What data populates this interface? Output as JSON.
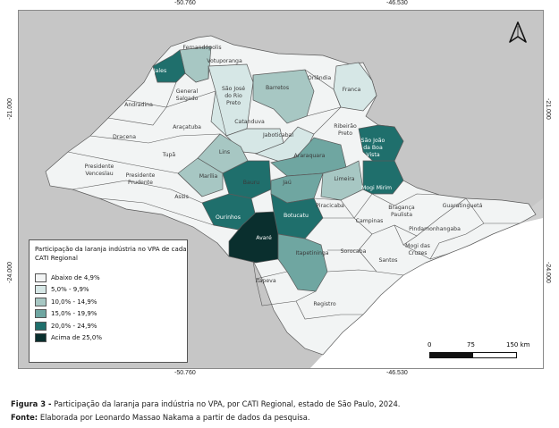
{
  "coords": {
    "top_left": "-50.760",
    "top_right": "-46.530",
    "bottom_left": "-50.760",
    "bottom_right": "-46.530",
    "left_upper": "-21.000",
    "left_lower": "-24.000",
    "right_upper": "-21.000",
    "right_lower": "-24.000"
  },
  "regions": [
    {
      "name": "Fernandópolis",
      "class": "c2"
    },
    {
      "name": "Votuporanga",
      "class": "c1"
    },
    {
      "name": "Jales",
      "class": "c5"
    },
    {
      "name": "General Salgado",
      "class": "c1"
    },
    {
      "name": "São José do Rio Preto",
      "class": "c2"
    },
    {
      "name": "Barretos",
      "class": "c3"
    },
    {
      "name": "Orlândia",
      "class": "c1"
    },
    {
      "name": "Franca",
      "class": "c2"
    },
    {
      "name": "Andradina",
      "class": "c1"
    },
    {
      "name": "Catanduva",
      "class": "c2"
    },
    {
      "name": "Ribeirão Preto",
      "class": "c1"
    },
    {
      "name": "Araçatuba",
      "class": "c1"
    },
    {
      "name": "Jaboticabal",
      "class": "c2"
    },
    {
      "name": "São João da Boa Vista",
      "class": "c5"
    },
    {
      "name": "Dracena",
      "class": "c1"
    },
    {
      "name": "Lins",
      "class": "c3"
    },
    {
      "name": "Araraquara",
      "class": "c4"
    },
    {
      "name": "Tupã",
      "class": "c1"
    },
    {
      "name": "Presidente Venceslau",
      "class": "c1"
    },
    {
      "name": "Marília",
      "class": "c3"
    },
    {
      "name": "Presidente Prudente",
      "class": "c1"
    },
    {
      "name": "Bauru",
      "class": "c5"
    },
    {
      "name": "Jaú",
      "class": "c4"
    },
    {
      "name": "Limeira",
      "class": "c3"
    },
    {
      "name": "Mogi Mirim",
      "class": "c5"
    },
    {
      "name": "Assis",
      "class": "c1"
    },
    {
      "name": "Ourinhos",
      "class": "c5"
    },
    {
      "name": "Botucatu",
      "class": "c5"
    },
    {
      "name": "Piracicaba",
      "class": "c1"
    },
    {
      "name": "Bragança Paulista",
      "class": "c1"
    },
    {
      "name": "Campinas",
      "class": "c1"
    },
    {
      "name": "Guaratinguetá",
      "class": "c1"
    },
    {
      "name": "Pindamonhangaba",
      "class": "c1"
    },
    {
      "name": "Avaré",
      "class": "c6"
    },
    {
      "name": "Itapetininga",
      "class": "c3"
    },
    {
      "name": "Sorocaba",
      "class": "c1"
    },
    {
      "name": "Mogi das Cruzes",
      "class": "c1"
    },
    {
      "name": "Santos",
      "class": "c1"
    },
    {
      "name": "Itapeva",
      "class": "c1"
    },
    {
      "name": "Registro",
      "class": "c1"
    }
  ],
  "legend": {
    "title": "Participação da laranja indústria no VPA de cada CATI Regional",
    "items": [
      {
        "label": "Abaixo de 4,9%",
        "color": "#f2f4f4"
      },
      {
        "label": "5,0% - 9,9%",
        "color": "#d6e7e6"
      },
      {
        "label": "10,0% - 14,9%",
        "color": "#a7c7c3"
      },
      {
        "label": "15,0% - 19,9%",
        "color": "#6fa6a1"
      },
      {
        "label": "20,0% - 24,9%",
        "color": "#1f6f6c"
      },
      {
        "label": "Acima de 25,0%",
        "color": "#0a2f2e"
      }
    ]
  },
  "scale": {
    "labels": [
      "0",
      "75",
      "150 km"
    ]
  },
  "caption": {
    "figure_label": "Figura 3 -",
    "figure_text": "Participação da laranja para indústria no VPA, por CATI Regional, estado de São Paulo, 2024.",
    "source_label": "Fonte:",
    "source_text": "Elaborada por Leonardo Massao Nakama a partir de dados da pesquisa."
  }
}
